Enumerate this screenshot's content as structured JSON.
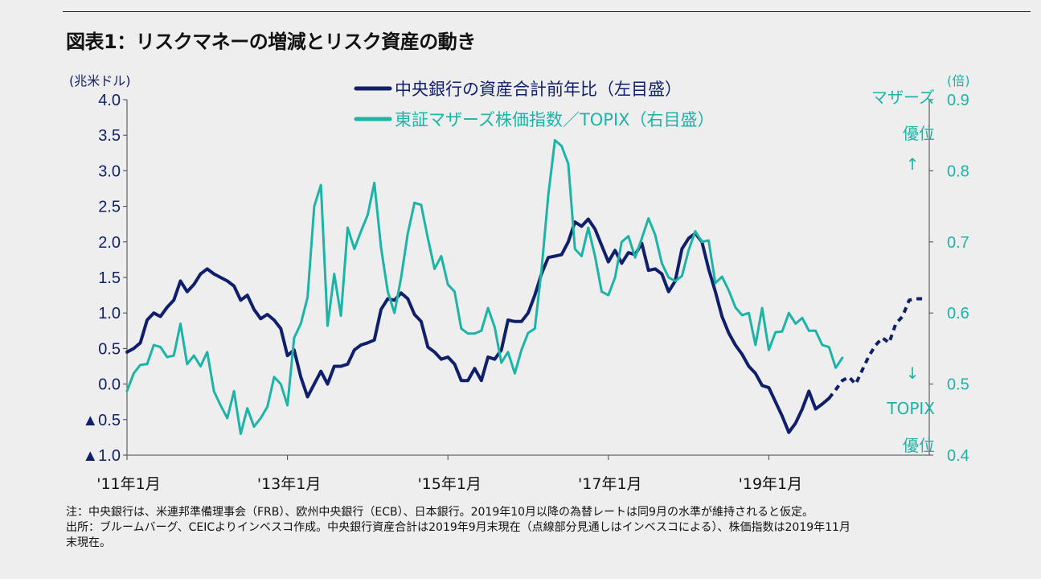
{
  "title": "図表1：リスクマネーの増減とリスク資産の動き",
  "colors": {
    "navy": "#0f1f6b",
    "teal": "#1bb4a6"
  },
  "annotations": {
    "top_label": "マザーズ",
    "top_sub": "優位",
    "up_arrow": "↑",
    "down_arrow": "↓",
    "bottom_label": "TOPIX",
    "bottom_sub": "優位"
  },
  "notes": {
    "line1": "注：中央銀行は、米連邦準備理事会（FRB）、欧州中央銀行（ECB）、日本銀行。2019年10月以降の為替レートは同9月の水準が維持されると仮定。",
    "line2": "出所：ブルームバーグ、CEICよりインベスコ作成。中央銀行資産合計は2019年9月末現在（点線部分見通しはインベスコによる）、株価指数は2019年11月",
    "line3": "末現在。"
  },
  "chart_data": {
    "type": "line",
    "xlabel": "",
    "x_tick_labels": [
      "'11年1月",
      "'13年1月",
      "'15年1月",
      "'17年1月",
      "'19年1月"
    ],
    "x_tick_months": [
      0,
      24,
      48,
      72,
      96
    ],
    "x_range_months": [
      0,
      120
    ],
    "y_left": {
      "unit_label": "(兆米ドル)",
      "range": [
        -1.0,
        4.0
      ],
      "ticks": [
        4.0,
        3.5,
        3.0,
        2.5,
        2.0,
        1.5,
        1.0,
        0.5,
        0.0,
        -0.5,
        -1.0
      ],
      "tick_labels": [
        "4.0",
        "3.5",
        "3.0",
        "2.5",
        "2.0",
        "1.5",
        "1.0",
        "0.5",
        "0.0",
        "▲0.5",
        "▲1.0"
      ]
    },
    "y_right": {
      "unit_label": "(倍)",
      "range": [
        0.4,
        0.9
      ],
      "ticks": [
        0.9,
        0.8,
        0.7,
        0.6,
        0.5,
        0.4
      ],
      "tick_labels": [
        "0.9",
        "0.8",
        "0.7",
        "0.6",
        "0.5",
        "0.4"
      ]
    },
    "series": [
      {
        "name": "中央銀行の資産合計前年比（左目盛）",
        "axis": "left",
        "color": "#0f1f6b",
        "x_start_month": 0,
        "values": [
          0.45,
          0.5,
          0.58,
          0.9,
          1.0,
          0.95,
          1.08,
          1.18,
          1.45,
          1.3,
          1.4,
          1.55,
          1.62,
          1.55,
          1.5,
          1.45,
          1.38,
          1.18,
          1.25,
          1.05,
          0.92,
          0.98,
          0.9,
          0.78,
          0.4,
          0.48,
          0.1,
          -0.18,
          0.0,
          0.18,
          0.0,
          0.25,
          0.25,
          0.28,
          0.48,
          0.55,
          0.58,
          0.62,
          1.05,
          1.2,
          1.18,
          1.28,
          1.2,
          0.98,
          0.88,
          0.52,
          0.45,
          0.35,
          0.38,
          0.28,
          0.05,
          0.05,
          0.22,
          0.05,
          0.38,
          0.35,
          0.48,
          0.9,
          0.88,
          0.88,
          1.0,
          1.25,
          1.55,
          1.78,
          1.8,
          1.82,
          2.0,
          2.28,
          2.22,
          2.32,
          2.18,
          1.95,
          1.72,
          1.88,
          1.7,
          1.85,
          1.82,
          1.98,
          1.6,
          1.62,
          1.55,
          1.3,
          1.45,
          1.9,
          2.05,
          2.12,
          2.0,
          1.62,
          1.3,
          0.95,
          0.72,
          0.55,
          0.42,
          0.25,
          0.15,
          -0.02,
          -0.05,
          -0.25,
          -0.45,
          -0.68,
          -0.55,
          -0.35,
          -0.1,
          -0.35,
          -0.28,
          -0.2
        ],
        "forecast_x_start_month": 105,
        "forecast_values": [
          -0.2,
          -0.08,
          0.05,
          0.1,
          0.0,
          0.2,
          0.4,
          0.55,
          0.65,
          0.58,
          0.85,
          0.95,
          1.18,
          1.2,
          1.2
        ]
      },
      {
        "name": "東証マザーズ株価指数／TOPIX（右目盛）",
        "axis": "right",
        "color": "#1bb4a6",
        "x_start_month": 0,
        "values": [
          0.49,
          0.515,
          0.527,
          0.528,
          0.555,
          0.552,
          0.538,
          0.54,
          0.585,
          0.528,
          0.54,
          0.525,
          0.545,
          0.49,
          0.47,
          0.452,
          0.49,
          0.43,
          0.466,
          0.44,
          0.452,
          0.468,
          0.51,
          0.5,
          0.47,
          0.565,
          0.585,
          0.622,
          0.75,
          0.78,
          0.582,
          0.655,
          0.596,
          0.72,
          0.69,
          0.715,
          0.738,
          0.783,
          0.692,
          0.63,
          0.6,
          0.65,
          0.712,
          0.755,
          0.752,
          0.705,
          0.662,
          0.68,
          0.64,
          0.63,
          0.578,
          0.571,
          0.571,
          0.575,
          0.607,
          0.58,
          0.53,
          0.545,
          0.515,
          0.548,
          0.572,
          0.578,
          0.66,
          0.765,
          0.843,
          0.835,
          0.81,
          0.69,
          0.68,
          0.72,
          0.68,
          0.63,
          0.625,
          0.65,
          0.7,
          0.708,
          0.678,
          0.705,
          0.733,
          0.71,
          0.67,
          0.65,
          0.645,
          0.652,
          0.688,
          0.715,
          0.7,
          0.702,
          0.642,
          0.651,
          0.632,
          0.608,
          0.597,
          0.6,
          0.555,
          0.607,
          0.548,
          0.573,
          0.574,
          0.6,
          0.585,
          0.593,
          0.575,
          0.575,
          0.555,
          0.552,
          0.523,
          0.537
        ]
      }
    ],
    "legend_placement": "top-center",
    "grid": false
  }
}
